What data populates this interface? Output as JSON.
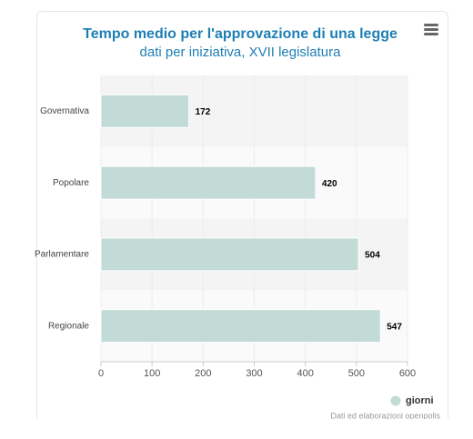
{
  "chart_data": {
    "type": "bar",
    "orientation": "horizontal",
    "title": "Tempo medio per l'approvazione di una legge",
    "subtitle": "dati per iniziativa, XVII legislatura",
    "categories": [
      "Governativa",
      "Popolare",
      "Parlamentare",
      "Regionale"
    ],
    "series": [
      {
        "name": "giorni",
        "color": "#c2dbd6",
        "values": [
          172,
          420,
          504,
          547
        ]
      }
    ],
    "xlim": [
      0,
      600
    ],
    "xticks": [
      0,
      100,
      200,
      300,
      400,
      500,
      600
    ],
    "grid": true,
    "legend": "bottom-right",
    "credits": "Dati ed elaborazioni openpolis"
  }
}
